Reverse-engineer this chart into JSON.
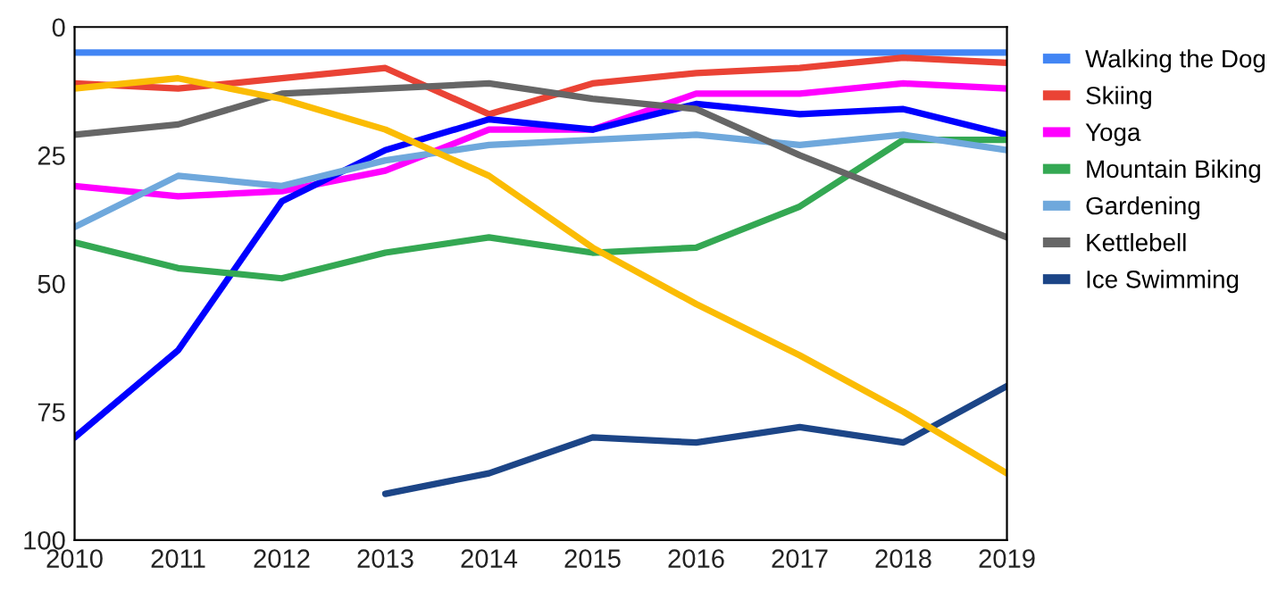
{
  "chart_data": {
    "type": "line",
    "x": [
      2010,
      2011,
      2012,
      2013,
      2014,
      2015,
      2016,
      2017,
      2018,
      2019
    ],
    "series": [
      {
        "name": "Walking the Dog",
        "color": "#4285f4",
        "values": [
          5,
          5,
          5,
          5,
          5,
          5,
          5,
          5,
          5,
          5
        ]
      },
      {
        "name": "Skiing",
        "color": "#ea4335",
        "values": [
          11,
          12,
          10,
          8,
          17,
          11,
          9,
          8,
          6,
          7
        ]
      },
      {
        "name": "Yoga",
        "color": "#ff00ff",
        "values": [
          31,
          33,
          32,
          28,
          20,
          20,
          13,
          13,
          11,
          12
        ]
      },
      {
        "color": "#0000ff",
        "values": [
          80,
          63,
          34,
          24,
          18,
          20,
          15,
          17,
          16,
          21
        ]
      },
      {
        "name": "Mountain Biking",
        "color": "#34a853",
        "values": [
          42,
          47,
          49,
          44,
          41,
          44,
          43,
          35,
          22,
          22
        ]
      },
      {
        "name": "Gardening",
        "color": "#6fa8dc",
        "values": [
          39,
          29,
          31,
          26,
          23,
          22,
          21,
          23,
          21,
          24
        ]
      },
      {
        "name": "Kettlebell",
        "color": "#666666",
        "values": [
          21,
          19,
          13,
          12,
          11,
          14,
          16,
          25,
          33,
          41
        ]
      },
      {
        "name": "Ice Swimming",
        "color": "#1c4587",
        "values": [
          null,
          null,
          null,
          91,
          87,
          80,
          81,
          78,
          81,
          70
        ]
      },
      {
        "color": "#fbbc04",
        "values": [
          12,
          10,
          14,
          20,
          29,
          43,
          54,
          64,
          75,
          87
        ]
      }
    ],
    "xlim": [
      2010,
      2019
    ],
    "xticks": [
      2010,
      2011,
      2012,
      2013,
      2014,
      2015,
      2016,
      2017,
      2018,
      2019
    ],
    "ylim": [
      100,
      0
    ],
    "yticks": [
      0,
      25,
      50,
      75,
      100
    ],
    "grid": false,
    "legend": "right",
    "marker": "none",
    "line_style": "solid"
  }
}
